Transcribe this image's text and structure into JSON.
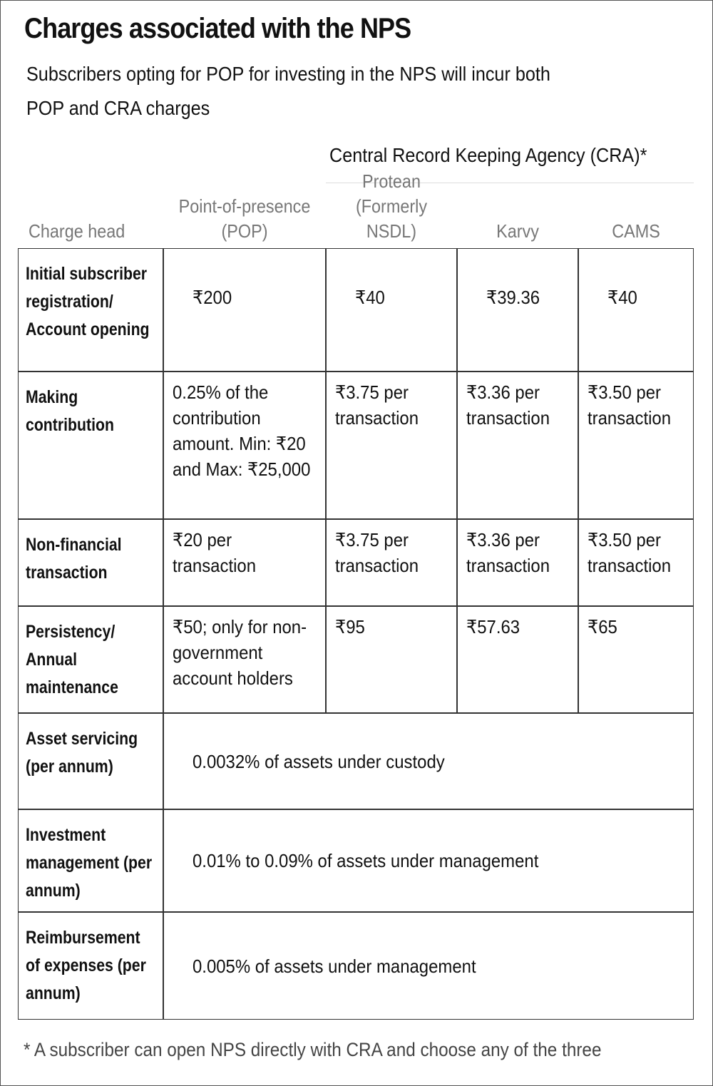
{
  "header": {
    "title": "Charges associated with the NPS",
    "subtitle": "Subscribers opting for POP for investing in the NPS will incur both POP and CRA charges"
  },
  "table": {
    "group_header": "Central Record Keeping Agency (CRA)*",
    "columns": [
      "Charge head",
      "Point-of-presence (POP)",
      "Protean (Formerly NSDL)",
      "Karvy",
      "CAMS"
    ],
    "rows": [
      [
        "Initial subscriber registration/ Account opening",
        "₹200",
        "₹40",
        "₹39.36",
        "₹40"
      ],
      [
        "Making contribution",
        "0.25% of the contribution amount. Min: ₹20 and Max: ₹25,000",
        "₹3.75 per transaction",
        "₹3.36 per transaction",
        "₹3.50 per transaction"
      ],
      [
        "Non-financial transaction",
        "₹20 per transaction",
        "₹3.75 per transaction",
        "₹3.36 per transaction",
        "₹3.50 per transaction"
      ],
      [
        "Persistency/ Annual maintenance",
        "₹50; only for non-government account holders",
        "₹95",
        "₹57.63",
        "₹65"
      ],
      [
        "Asset servicing (per annum)",
        "0.0032% of assets under custody"
      ],
      [
        "Investment management (per annum)",
        "0.01% to 0.09% of assets under management"
      ],
      [
        "Reimbursement of expenses (per annum)",
        "0.005% of assets under management"
      ]
    ]
  },
  "footnote": "* A subscriber can open NPS directly with CRA and choose any of the three"
}
